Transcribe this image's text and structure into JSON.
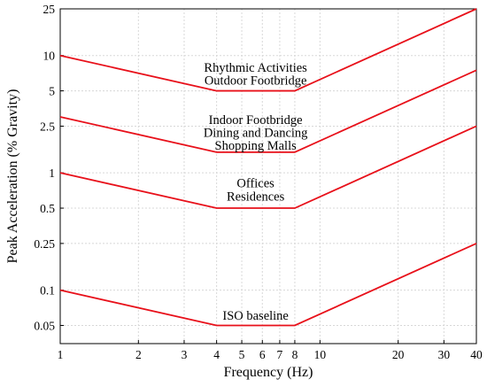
{
  "chart_data": {
    "type": "line",
    "title": "",
    "xlabel": "Frequency (Hz)",
    "ylabel": "Peak  Acceleration (% Gravity)",
    "xscale": "log",
    "yscale": "log",
    "xlim": [
      1,
      40
    ],
    "ylim": [
      0.035,
      25
    ],
    "grid": true,
    "line_color": "#e8101a",
    "x_ticks": [
      {
        "value": 1,
        "label": "1"
      },
      {
        "value": 2,
        "label": "2"
      },
      {
        "value": 3,
        "label": "3"
      },
      {
        "value": 4,
        "label": "4"
      },
      {
        "value": 5,
        "label": "5"
      },
      {
        "value": 6,
        "label": "6"
      },
      {
        "value": 7,
        "label": "7"
      },
      {
        "value": 8,
        "label": "8"
      },
      {
        "value": 10,
        "label": "10"
      },
      {
        "value": 20,
        "label": "20"
      },
      {
        "value": 30,
        "label": "30"
      },
      {
        "value": 40,
        "label": "40"
      }
    ],
    "y_ticks": [
      {
        "value": 0.05,
        "label": "0.05"
      },
      {
        "value": 0.1,
        "label": "0.1"
      },
      {
        "value": 0.25,
        "label": "0.25"
      },
      {
        "value": 0.5,
        "label": "0.5"
      },
      {
        "value": 1,
        "label": "1"
      },
      {
        "value": 2.5,
        "label": "2.5"
      },
      {
        "value": 5,
        "label": "5"
      },
      {
        "value": 10,
        "label": "10"
      },
      {
        "value": 25,
        "label": "25"
      }
    ],
    "series": [
      {
        "x": [
          1,
          4,
          8,
          40
        ],
        "y": [
          10,
          5,
          5,
          25
        ]
      },
      {
        "x": [
          1,
          4,
          8,
          40
        ],
        "y": [
          3,
          1.5,
          1.5,
          7.5
        ]
      },
      {
        "x": [
          1,
          4,
          8,
          40
        ],
        "y": [
          1,
          0.5,
          0.5,
          2.5
        ]
      },
      {
        "x": [
          1,
          4,
          8,
          40
        ],
        "y": [
          0.1,
          0.05,
          0.05,
          0.25
        ]
      }
    ],
    "annotations": [
      {
        "text": "Rhythmic Activities",
        "x": 5.65,
        "y": 7.3
      },
      {
        "text": "Outdoor Footbridge",
        "x": 5.65,
        "y": 5.65
      },
      {
        "text": "Indoor Footbridge",
        "x": 5.65,
        "y": 2.62
      },
      {
        "text": "Dining and Dancing",
        "x": 5.65,
        "y": 2.02
      },
      {
        "text": "Shopping Malls",
        "x": 5.65,
        "y": 1.58
      },
      {
        "text": "Offices",
        "x": 5.65,
        "y": 0.75
      },
      {
        "text": "Residences",
        "x": 5.65,
        "y": 0.58
      },
      {
        "text": "ISO baseline",
        "x": 5.65,
        "y": 0.056
      }
    ]
  }
}
